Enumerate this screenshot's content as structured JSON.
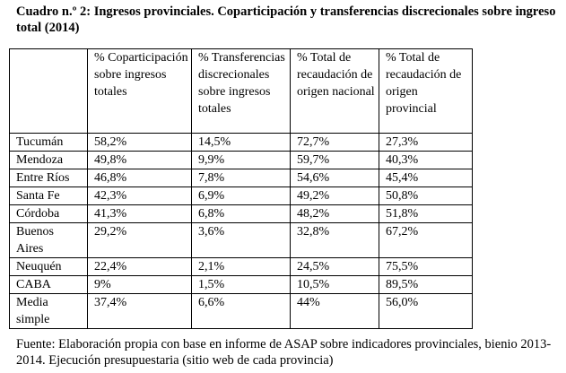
{
  "title": "Cuadro n.º 2: Ingresos provinciales. Coparticipación y transferencias discrecionales sobre ingreso total (2014)",
  "table": {
    "headers": [
      "",
      "% Coparticipación sobre ingresos totales",
      "% Transferencias discrecionales sobre ingresos totales",
      "% Total de recaudación de origen nacional",
      "% Total de recaudación de origen provincial"
    ],
    "rows": [
      [
        "Tucumán",
        "58,2%",
        "14,5%",
        "72,7%",
        "27,3%"
      ],
      [
        "Mendoza",
        "49,8%",
        "9,9%",
        "59,7%",
        "40,3%"
      ],
      [
        "Entre Ríos",
        "46,8%",
        "7,8%",
        "54,6%",
        "45,4%"
      ],
      [
        "Santa Fe",
        "42,3%",
        "6,9%",
        "49,2%",
        "50,8%"
      ],
      [
        "Córdoba",
        "41,3%",
        "6,8%",
        "48,2%",
        "51,8%"
      ],
      [
        "Buenos Aires",
        "29,2%",
        "3,6%",
        "32,8%",
        "67,2%"
      ],
      [
        "Neuquén",
        "22,4%",
        "2,1%",
        "24,5%",
        "75,5%"
      ],
      [
        "CABA",
        "9%",
        "1,5%",
        "10,5%",
        "89,5%"
      ],
      [
        "Media simple",
        "37,4%",
        "6,6%",
        "44%",
        "56,0%"
      ]
    ]
  },
  "footer": "Fuente: Elaboración propia con base en informe de ASAP sobre indicadores provinciales, bienio 2013-2014. Ejecución presupuestaria (sitio web de cada provincia)"
}
